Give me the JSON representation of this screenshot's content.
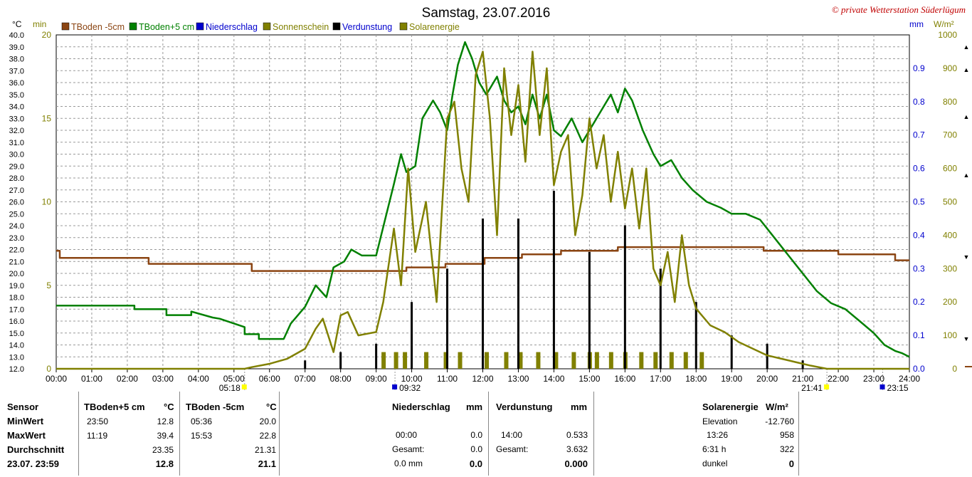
{
  "header": {
    "title": "Samstag, 23.07.2016",
    "credit": "© private Wetterstation Süderlügum",
    "unit_left_temp": "°C",
    "unit_left_min": "min",
    "unit_right_mm": "mm",
    "unit_right_wm2": "W/m²"
  },
  "legend": [
    {
      "label": "TBoden -5cm",
      "color": "#8B4513"
    },
    {
      "label": "TBoden+5 cm",
      "color": "#008000"
    },
    {
      "label": "Niederschlag",
      "color": "#0000CD"
    },
    {
      "label": "Sonnenschein",
      "color": "#808000"
    },
    {
      "label": "Verdunstung",
      "color": "#000000"
    },
    {
      "label": "Solarenergie",
      "color": "#808000"
    }
  ],
  "sun_markers": [
    {
      "label": "05:18",
      "hour": 5.3
    },
    {
      "label": "09:32",
      "hour": 9.53
    },
    {
      "label": "21:41",
      "hour": 21.68
    },
    {
      "label": "23:15",
      "hour": 23.25
    }
  ],
  "chart_data": {
    "type": "line",
    "title": "Samstag, 23.07.2016",
    "x_ticks": [
      "00:00",
      "01:00",
      "02:00",
      "03:00",
      "04:00",
      "05:00",
      "06:00",
      "07:00",
      "08:00",
      "09:00",
      "10:00",
      "11:00",
      "12:00",
      "13:00",
      "14:00",
      "15:00",
      "16:00",
      "17:00",
      "18:00",
      "19:00",
      "20:00",
      "21:00",
      "22:00",
      "23:00",
      "24:00"
    ],
    "xlim": [
      0,
      24
    ],
    "y_temp_ticks": [
      "12.0",
      "13.0",
      "14.0",
      "15.0",
      "16.0",
      "17.0",
      "18.0",
      "19.0",
      "20.0",
      "21.0",
      "22.0",
      "23.0",
      "24.0",
      "25.0",
      "26.0",
      "27.0",
      "28.0",
      "29.0",
      "30.0",
      "31.0",
      "32.0",
      "33.0",
      "34.0",
      "35.0",
      "36.0",
      "37.0",
      "38.0",
      "39.0",
      "40.0"
    ],
    "y_temp_lim": [
      12,
      40
    ],
    "y_min_ticks": [
      "0",
      "5",
      "10",
      "15",
      "20"
    ],
    "y_min_lim": [
      0,
      20
    ],
    "y_mm_ticks": [
      "0.0",
      "0.1",
      "0.2",
      "0.3",
      "0.4",
      "0.5",
      "0.6",
      "0.7",
      "0.8",
      "0.9"
    ],
    "y_mm_lim": [
      0,
      1
    ],
    "y_wm2_ticks": [
      "0",
      "100",
      "200",
      "300",
      "400",
      "500",
      "600",
      "700",
      "800",
      "900",
      "1000"
    ],
    "y_wm2_lim": [
      0,
      1000
    ],
    "grid": true,
    "series": [
      {
        "name": "TBoden -5cm",
        "axis": "temp",
        "color": "#8B4513",
        "x": [
          0,
          0.1,
          0.1,
          2.6,
          2.6,
          5.5,
          5.5,
          9.85,
          9.85,
          10.95,
          10.95,
          12.05,
          12.05,
          13.1,
          13.1,
          14.2,
          14.2,
          15.8,
          15.8,
          19.9,
          19.9,
          22.0,
          22.0,
          23.6,
          23.6,
          24
        ],
        "y": [
          21.9,
          21.9,
          21.3,
          21.3,
          20.8,
          20.8,
          20.2,
          20.2,
          20.5,
          20.5,
          20.8,
          20.8,
          21.3,
          21.3,
          21.6,
          21.6,
          21.9,
          21.9,
          22.2,
          22.2,
          21.9,
          21.9,
          21.6,
          21.6,
          21.1,
          21.1
        ]
      },
      {
        "name": "TBoden+5 cm",
        "axis": "temp",
        "color": "#008000",
        "x": [
          0,
          2.2,
          2.2,
          3.1,
          3.1,
          3.8,
          3.8,
          4.4,
          4.6,
          5.3,
          5.3,
          5.7,
          5.7,
          6.4,
          6.6,
          7.0,
          7.3,
          7.6,
          7.8,
          8.1,
          8.3,
          8.6,
          9.0,
          9.5,
          9.7,
          9.85,
          10.1,
          10.3,
          10.6,
          10.8,
          11.0,
          11.15,
          11.3,
          11.5,
          11.7,
          11.9,
          12.1,
          12.4,
          12.6,
          12.8,
          13.0,
          13.2,
          13.4,
          13.6,
          13.8,
          14.0,
          14.2,
          14.5,
          14.8,
          15.1,
          15.4,
          15.6,
          15.8,
          16.0,
          16.2,
          16.5,
          16.8,
          17.0,
          17.3,
          17.6,
          17.9,
          18.3,
          18.7,
          19.0,
          19.4,
          19.8,
          20.2,
          20.6,
          21.0,
          21.4,
          21.8,
          22.2,
          22.6,
          23.0,
          23.3,
          23.6,
          23.8,
          24
        ],
        "y": [
          17.3,
          17.3,
          17.0,
          17.0,
          16.5,
          16.5,
          16.8,
          16.3,
          16.2,
          15.5,
          14.9,
          14.9,
          14.5,
          14.5,
          15.8,
          17.2,
          19.0,
          18.0,
          20.5,
          21.0,
          22.0,
          21.5,
          21.5,
          27.5,
          30.0,
          28.5,
          29.0,
          33.0,
          34.5,
          33.5,
          32.0,
          35.0,
          37.5,
          39.4,
          38.0,
          36.0,
          35.0,
          36.5,
          34.5,
          33.5,
          34.0,
          32.5,
          35.0,
          33.0,
          35.0,
          32.0,
          31.5,
          33.0,
          31.0,
          32.5,
          34.0,
          35.0,
          33.5,
          35.5,
          34.5,
          32.0,
          30.0,
          29.0,
          29.5,
          28.0,
          27.0,
          26.0,
          25.5,
          25.0,
          25.0,
          24.5,
          23.0,
          21.5,
          20.0,
          18.5,
          17.5,
          17.0,
          16.0,
          15.0,
          14.0,
          13.5,
          13.3,
          13.0
        ]
      },
      {
        "name": "Sonnenschein",
        "axis": "min",
        "color": "#808000",
        "note": "bars",
        "x": [
          9.15,
          9.5,
          9.75,
          10.35,
          10.9,
          11.3,
          12.05,
          12.6,
          13.0,
          13.5,
          14.0,
          14.5,
          14.95,
          15.15,
          15.55,
          15.95,
          16.4,
          16.8,
          17.25,
          17.65,
          18.1
        ],
        "y": [
          1,
          1,
          1,
          1,
          1,
          1,
          1,
          1,
          1,
          1,
          1,
          1,
          1,
          1,
          1,
          1,
          1,
          1,
          1,
          1,
          1
        ]
      },
      {
        "name": "Verdunstung",
        "axis": "mm",
        "color": "#000000",
        "note": "bars",
        "x": [
          7.0,
          8.0,
          9.0,
          10.0,
          11.0,
          12.0,
          13.0,
          14.0,
          15.0,
          16.0,
          17.0,
          18.0,
          19.0,
          20.0,
          21.0
        ],
        "y": [
          0.025,
          0.05,
          0.075,
          0.2,
          0.3,
          0.45,
          0.45,
          0.533,
          0.35,
          0.43,
          0.3,
          0.2,
          0.1,
          0.075,
          0.025
        ]
      },
      {
        "name": "Solarenergie",
        "axis": "wm2",
        "color": "#808000",
        "x": [
          0,
          5.3,
          5.5,
          6.0,
          6.5,
          7.0,
          7.3,
          7.5,
          7.8,
          8.0,
          8.2,
          8.5,
          9.0,
          9.2,
          9.5,
          9.7,
          9.9,
          10.1,
          10.4,
          10.7,
          11.0,
          11.2,
          11.4,
          11.6,
          11.8,
          12.0,
          12.2,
          12.4,
          12.6,
          12.8,
          13.0,
          13.2,
          13.4,
          13.6,
          13.8,
          14.0,
          14.2,
          14.4,
          14.6,
          14.8,
          15.0,
          15.2,
          15.4,
          15.6,
          15.8,
          16.0,
          16.2,
          16.4,
          16.6,
          16.8,
          17.0,
          17.2,
          17.4,
          17.6,
          17.8,
          18.0,
          18.4,
          18.8,
          19.2,
          19.6,
          20.0,
          20.4,
          20.8,
          21.2,
          21.68,
          24
        ],
        "y": [
          0,
          0,
          5,
          15,
          30,
          60,
          120,
          150,
          50,
          160,
          170,
          100,
          110,
          200,
          420,
          250,
          600,
          350,
          500,
          200,
          750,
          800,
          600,
          500,
          880,
          950,
          750,
          400,
          900,
          700,
          850,
          620,
          950,
          700,
          900,
          550,
          650,
          700,
          400,
          520,
          750,
          600,
          700,
          500,
          650,
          480,
          600,
          420,
          600,
          300,
          250,
          350,
          200,
          400,
          250,
          180,
          130,
          110,
          80,
          60,
          40,
          30,
          20,
          10,
          0,
          0
        ]
      }
    ]
  },
  "table": {
    "headers": {
      "sensor": "Sensor",
      "tboden5": "TBoden+5 cm",
      "tboden5_unit": "°C",
      "tbodenm5": "TBoden -5cm",
      "tbodenm5_unit": "°C",
      "nieder": "Niederschlag",
      "nieder_unit": "mm",
      "verd": "Verdunstung",
      "verd_unit": "mm",
      "solar": "Solarenergie",
      "solar_unit": "W/m²"
    },
    "rows": {
      "min_label": "MinWert",
      "max_label": "MaxWert",
      "avg_label": "Durchschnitt",
      "date_label": "23.07. 23:59"
    },
    "tboden5": {
      "min_time": "23:50",
      "min_val": "12.8",
      "max_time": "11:19",
      "max_val": "39.4",
      "avg": "23.35",
      "cur": "12.8"
    },
    "tbodenm5": {
      "min_time": "05:36",
      "min_val": "20.0",
      "max_time": "15:53",
      "max_val": "22.8",
      "avg": "21.31",
      "cur": "21.1"
    },
    "nieder": {
      "max_time": "00:00",
      "max_val": "0.0",
      "gesamt_label": "Gesamt:",
      "gesamt_val": "0.0",
      "cur_label": "0.0 mm",
      "cur_val": "0.0"
    },
    "verd": {
      "max_time": "14:00",
      "max_val": "0.533",
      "gesamt_label": "Gesamt:",
      "gesamt_val": "3.632",
      "cur_val": "0.000"
    },
    "solar": {
      "elev_label": "Elevation",
      "elev_val": "-12.760",
      "max_time": "13:26",
      "max_val": "958",
      "dur_label": "6:31 h",
      "dur_val": "322",
      "state_label": "dunkel",
      "state_val": "0"
    }
  }
}
